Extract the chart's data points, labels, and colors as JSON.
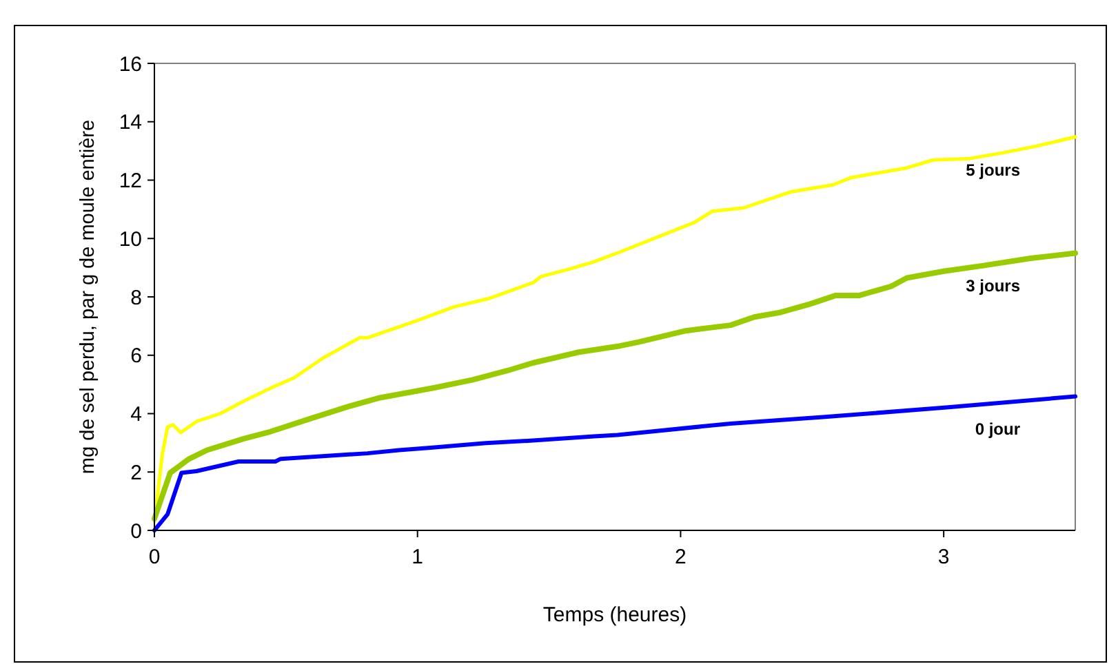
{
  "chart_data": {
    "type": "line",
    "xlabel": "Temps (heures)",
    "ylabel": "mg de sel perdu, par g de moule entière",
    "xlim": [
      0,
      3.5
    ],
    "ylim": [
      0,
      16
    ],
    "xticks": [
      0,
      1,
      2,
      3
    ],
    "yticks": [
      0,
      2,
      4,
      6,
      8,
      10,
      12,
      14,
      16
    ],
    "grid": false,
    "marker": "none",
    "line_style": "solid",
    "series": [
      {
        "name": "5 jours",
        "color": "#ffff00",
        "x": [
          0,
          0.03,
          0.05,
          0.07,
          0.1,
          0.16,
          0.25,
          0.34,
          0.46,
          0.53,
          0.64,
          0.78,
          0.81,
          0.99,
          1.14,
          1.27,
          1.44,
          1.47,
          1.58,
          1.67,
          1.77,
          2.05,
          2.12,
          2.24,
          2.42,
          2.58,
          2.65,
          2.86,
          2.96,
          3.1,
          3.22,
          3.35,
          3.5
        ],
        "values": [
          0.3,
          2.6,
          3.54,
          3.62,
          3.35,
          3.73,
          4.0,
          4.43,
          4.95,
          5.22,
          5.9,
          6.6,
          6.6,
          7.16,
          7.66,
          7.94,
          8.49,
          8.7,
          8.96,
          9.2,
          9.54,
          10.54,
          10.93,
          11.05,
          11.6,
          11.84,
          12.09,
          12.42,
          12.69,
          12.74,
          12.93,
          13.16,
          13.48
        ]
      },
      {
        "name": "3 jours",
        "color": "#99cc00",
        "x": [
          0,
          0.06,
          0.13,
          0.2,
          0.34,
          0.44,
          0.6,
          0.74,
          0.85,
          1.06,
          1.21,
          1.34,
          1.44,
          1.61,
          1.77,
          1.84,
          2.02,
          2.19,
          2.28,
          2.38,
          2.49,
          2.59,
          2.68,
          2.8,
          2.86,
          3.0,
          3.15,
          3.33,
          3.5
        ],
        "values": [
          0.4,
          1.97,
          2.44,
          2.75,
          3.14,
          3.38,
          3.85,
          4.25,
          4.53,
          4.88,
          5.16,
          5.47,
          5.74,
          6.1,
          6.32,
          6.45,
          6.84,
          7.03,
          7.31,
          7.47,
          7.75,
          8.05,
          8.05,
          8.36,
          8.65,
          8.88,
          9.07,
          9.32,
          9.5
        ]
      },
      {
        "name": "0 jour",
        "color": "#0000ff",
        "x": [
          0,
          0.05,
          0.103,
          0.16,
          0.32,
          0.46,
          0.48,
          0.67,
          0.81,
          0.93,
          1.05,
          1.26,
          1.42,
          1.67,
          1.76,
          2.19,
          2.54,
          3.01,
          3.5
        ],
        "values": [
          0,
          0.55,
          1.97,
          2.03,
          2.36,
          2.36,
          2.45,
          2.56,
          2.64,
          2.75,
          2.83,
          2.99,
          3.07,
          3.22,
          3.27,
          3.66,
          3.88,
          4.21,
          4.59
        ]
      }
    ]
  }
}
